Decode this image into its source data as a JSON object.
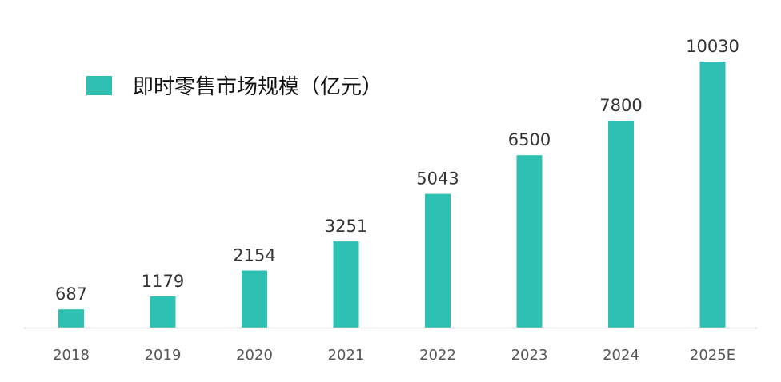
{
  "chart_data": {
    "type": "bar",
    "title": "",
    "xlabel": "",
    "ylabel": "",
    "legend_position": "top-left",
    "grid": false,
    "ylim": [
      0,
      10030
    ],
    "categories": [
      "2018",
      "2019",
      "2020",
      "2021",
      "2022",
      "2023",
      "2024",
      "2025E"
    ],
    "series": [
      {
        "name": "即时零售市场规模（亿元）",
        "values": [
          687,
          1179,
          2154,
          3251,
          5043,
          6500,
          7800,
          10030
        ],
        "color": "#2ec1b3"
      }
    ],
    "data_labels": [
      "687",
      "1179",
      "2154",
      "3251",
      "5043",
      "6500",
      "7800",
      "10030"
    ]
  },
  "colors": {
    "bar": "#2ec1b3",
    "baseline": "#d9d9d9"
  }
}
